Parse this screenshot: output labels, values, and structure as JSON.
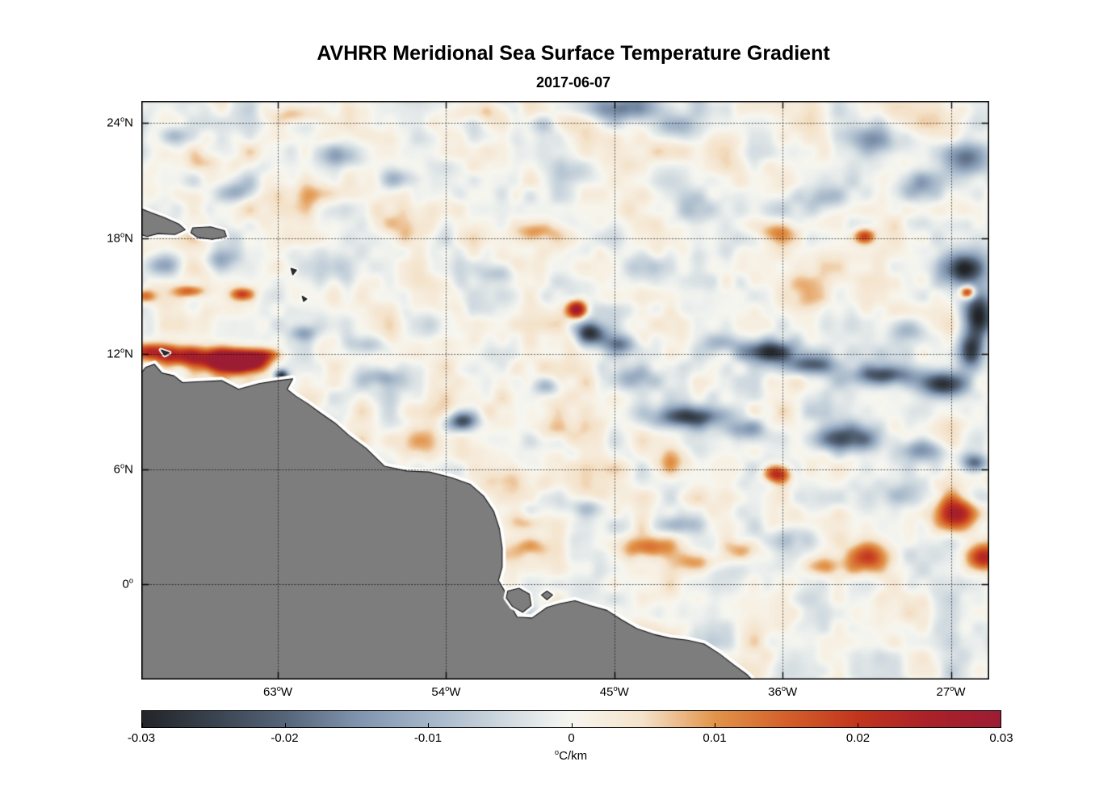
{
  "title": "AVHRR Meridional Sea Surface Temperature Gradient",
  "subtitle": "2017-06-07",
  "chart_data": {
    "type": "heatmap",
    "title": "AVHRR Meridional Sea Surface Temperature Gradient",
    "subtitle": "2017-06-07",
    "extent": {
      "lon_min": -70.3,
      "lon_max": -24.95,
      "lat_min": -4.95,
      "lat_max": 25.15
    },
    "x_ticks": [
      {
        "lon": -63,
        "label": "63^oW"
      },
      {
        "lon": -54,
        "label": "54^oW"
      },
      {
        "lon": -45,
        "label": "45^oW"
      },
      {
        "lon": -36,
        "label": "36^oW"
      },
      {
        "lon": -27,
        "label": "27^oW"
      }
    ],
    "y_ticks": [
      {
        "lat": 24,
        "label": "24^oN"
      },
      {
        "lat": 18,
        "label": "18^oN"
      },
      {
        "lat": 12,
        "label": "12^oN"
      },
      {
        "lat": 6,
        "label": "6^oN"
      },
      {
        "lat": 0,
        "label": "0^o"
      }
    ],
    "grid": {
      "lon": [
        -63,
        -54,
        -45,
        -36,
        -27
      ],
      "lat": [
        0,
        6,
        12,
        18,
        24
      ],
      "style": "dotted"
    },
    "colorbar": {
      "min": -0.03,
      "max": 0.03,
      "label": "^oC/km",
      "ticks": [
        {
          "v": -0.03,
          "label": "-0.03"
        },
        {
          "v": -0.02,
          "label": "-0.02"
        },
        {
          "v": -0.01,
          "label": "-0.01"
        },
        {
          "v": 0,
          "label": "0"
        },
        {
          "v": 0.01,
          "label": "0.01"
        },
        {
          "v": 0.02,
          "label": "0.02"
        },
        {
          "v": 0.03,
          "label": "0.03"
        }
      ],
      "stops": [
        [
          -0.03,
          "#222428"
        ],
        [
          -0.025,
          "#39434f"
        ],
        [
          -0.02,
          "#566579"
        ],
        [
          -0.015,
          "#7e93ad"
        ],
        [
          -0.01,
          "#a3b5c8"
        ],
        [
          -0.005,
          "#ccd7de"
        ],
        [
          -0.001,
          "#eff1ee"
        ],
        [
          0.0,
          "#f6f6f0"
        ],
        [
          0.001,
          "#f7f2e7"
        ],
        [
          0.005,
          "#f4e2ca"
        ],
        [
          0.01,
          "#e2944a"
        ],
        [
          0.015,
          "#d4602a"
        ],
        [
          0.02,
          "#c2351e"
        ],
        [
          0.025,
          "#aa2129"
        ],
        [
          0.03,
          "#9c1d33"
        ]
      ]
    },
    "noise": {
      "seed": 20170607,
      "octave1": {
        "scale": 1.5,
        "amp": 0.0045
      },
      "octave2": {
        "scale": 0.75,
        "amp": 0.0028
      }
    },
    "features": [
      [
        -70.0,
        12.1,
        1.0,
        0.45,
        0.024
      ],
      [
        -68.0,
        11.9,
        1.2,
        0.5,
        0.026
      ],
      [
        -65.8,
        11.65,
        1.3,
        0.55,
        0.042
      ],
      [
        -64.6,
        11.6,
        0.9,
        0.45,
        0.036
      ],
      [
        -63.6,
        11.95,
        0.8,
        0.35,
        0.016
      ],
      [
        -62.8,
        10.85,
        0.35,
        0.3,
        -0.03
      ],
      [
        -70.2,
        15.0,
        0.6,
        0.35,
        0.016
      ],
      [
        -67.7,
        15.25,
        0.8,
        0.3,
        0.015
      ],
      [
        -64.9,
        15.1,
        0.6,
        0.3,
        0.016
      ],
      [
        -69.0,
        16.6,
        0.9,
        0.5,
        -0.011
      ],
      [
        -66.1,
        16.9,
        0.9,
        0.5,
        -0.009
      ],
      [
        -68.6,
        23.3,
        0.8,
        0.5,
        -0.012
      ],
      [
        -65.3,
        20.4,
        1.0,
        0.5,
        -0.011
      ],
      [
        -62.0,
        24.4,
        1.3,
        0.5,
        0.009
      ],
      [
        -59.7,
        22.3,
        1.1,
        0.6,
        -0.012
      ],
      [
        -56.6,
        21.1,
        1.0,
        0.5,
        -0.011
      ],
      [
        -66.8,
        21.9,
        1.0,
        0.5,
        0.008
      ],
      [
        -61.0,
        20.3,
        1.2,
        0.6,
        0.008
      ],
      [
        -52.4,
        24.6,
        1.2,
        0.5,
        0.008
      ],
      [
        -48.7,
        23.9,
        0.9,
        0.5,
        -0.009
      ],
      [
        -44.6,
        24.8,
        1.8,
        0.7,
        -0.02
      ],
      [
        -41.9,
        23.9,
        1.1,
        0.6,
        -0.013
      ],
      [
        -49.2,
        18.3,
        1.2,
        0.5,
        0.009
      ],
      [
        -51.2,
        16.2,
        1.0,
        0.5,
        -0.009
      ],
      [
        -46.9,
        21.6,
        1.0,
        0.6,
        -0.008
      ],
      [
        -30.9,
        23.1,
        1.4,
        0.8,
        -0.014
      ],
      [
        -26.3,
        22.1,
        1.2,
        0.8,
        -0.015
      ],
      [
        -33.6,
        20.1,
        1.2,
        0.6,
        -0.009
      ],
      [
        -31.6,
        18.1,
        0.55,
        0.4,
        0.02
      ],
      [
        -36.4,
        18.3,
        1.1,
        0.5,
        0.008
      ],
      [
        -47.0,
        14.3,
        0.55,
        0.45,
        0.034
      ],
      [
        -46.3,
        13.1,
        0.8,
        0.6,
        -0.026
      ],
      [
        -44.7,
        12.5,
        0.9,
        0.5,
        -0.016
      ],
      [
        -58.2,
        12.4,
        1.1,
        0.5,
        -0.009
      ],
      [
        -61.6,
        13.1,
        0.7,
        0.4,
        -0.01
      ],
      [
        -36.9,
        12.1,
        1.5,
        0.6,
        -0.027
      ],
      [
        -34.4,
        11.4,
        1.2,
        0.5,
        -0.02
      ],
      [
        -39.3,
        12.6,
        1.0,
        0.5,
        -0.011
      ],
      [
        -26.4,
        16.4,
        1.2,
        0.9,
        -0.027
      ],
      [
        -25.5,
        13.9,
        0.8,
        1.1,
        -0.033
      ],
      [
        -25.9,
        12.1,
        0.7,
        0.9,
        -0.029
      ],
      [
        -26.1,
        15.2,
        0.4,
        0.35,
        0.028
      ],
      [
        -30.6,
        10.9,
        1.6,
        0.55,
        -0.025
      ],
      [
        -27.4,
        10.4,
        1.3,
        0.7,
        -0.027
      ],
      [
        -29.3,
        13.2,
        1.0,
        0.6,
        -0.011
      ],
      [
        -53.1,
        8.5,
        0.8,
        0.5,
        -0.025
      ],
      [
        -48.6,
        10.3,
        0.8,
        0.5,
        -0.013
      ],
      [
        -40.9,
        8.7,
        1.8,
        0.55,
        -0.023
      ],
      [
        -37.9,
        8.1,
        1.2,
        0.5,
        -0.015
      ],
      [
        -32.7,
        7.6,
        1.6,
        0.7,
        -0.023
      ],
      [
        -28.6,
        7.0,
        1.1,
        0.6,
        -0.017
      ],
      [
        -36.3,
        5.75,
        0.7,
        0.45,
        0.025
      ],
      [
        -25.7,
        6.3,
        0.7,
        0.5,
        -0.023
      ],
      [
        -55.2,
        7.4,
        2.0,
        0.9,
        0.007
      ],
      [
        -50.5,
        5.3,
        1.6,
        0.7,
        0.007
      ],
      [
        -44.0,
        10.8,
        1.2,
        0.6,
        -0.009
      ],
      [
        -42.0,
        6.3,
        1.2,
        0.6,
        0.007
      ],
      [
        -46.4,
        4.0,
        1.1,
        0.5,
        -0.011
      ],
      [
        -43.2,
        1.9,
        1.4,
        0.55,
        0.013
      ],
      [
        -40.6,
        1.1,
        1.1,
        0.5,
        0.011
      ],
      [
        -41.6,
        3.1,
        1.3,
        0.5,
        -0.012
      ],
      [
        -31.3,
        1.4,
        1.4,
        0.8,
        0.017
      ],
      [
        -26.8,
        3.6,
        1.1,
        0.9,
        0.028
      ],
      [
        -25.3,
        1.4,
        0.8,
        0.7,
        0.026
      ],
      [
        -29.8,
        4.6,
        1.0,
        0.6,
        -0.012
      ],
      [
        -35.4,
        2.4,
        1.2,
        0.6,
        -0.01
      ],
      [
        -33.8,
        0.9,
        1.1,
        0.5,
        0.011
      ],
      [
        -38.2,
        1.8,
        1.0,
        0.5,
        0.009
      ],
      [
        -57.5,
        10.8,
        1.0,
        0.45,
        -0.008
      ],
      [
        -48.0,
        8.0,
        1.2,
        0.6,
        0.007
      ],
      [
        -54.0,
        13.5,
        1.5,
        0.8,
        -0.006
      ],
      [
        -59.0,
        16.5,
        1.5,
        0.8,
        -0.006
      ],
      [
        -43.5,
        16.5,
        1.5,
        0.8,
        -0.007
      ],
      [
        -41.0,
        19.5,
        1.5,
        0.9,
        -0.007
      ],
      [
        -56.0,
        18.5,
        1.5,
        0.8,
        0.006
      ],
      [
        -35.0,
        15.0,
        1.5,
        0.9,
        0.006
      ],
      [
        -29.0,
        20.8,
        1.3,
        0.7,
        -0.01
      ],
      [
        -49.8,
        3.2,
        1.0,
        0.5,
        0.009
      ],
      [
        -49.5,
        2.0,
        1.0,
        0.5,
        0.008
      ]
    ],
    "land": {
      "halo": "#ffffff",
      "outline": "#111111",
      "pieces": [
        {
          "name": "south-america-mainland",
          "halo": 9,
          "fill": "#7d7d7d",
          "pts": [
            [
              -70.35,
              10.95
            ],
            [
              -70.05,
              11.3
            ],
            [
              -69.6,
              11.45
            ],
            [
              -69.2,
              11.0
            ],
            [
              -68.55,
              10.85
            ],
            [
              -68.1,
              10.5
            ],
            [
              -67.1,
              10.55
            ],
            [
              -66.0,
              10.6
            ],
            [
              -65.1,
              10.15
            ],
            [
              -64.0,
              10.45
            ],
            [
              -63.0,
              10.6
            ],
            [
              -62.2,
              10.7
            ],
            [
              -62.5,
              10.15
            ],
            [
              -62.05,
              9.8
            ],
            [
              -61.4,
              9.4
            ],
            [
              -60.7,
              8.9
            ],
            [
              -59.95,
              8.4
            ],
            [
              -59.2,
              7.75
            ],
            [
              -58.3,
              7.1
            ],
            [
              -57.3,
              6.15
            ],
            [
              -56.1,
              5.9
            ],
            [
              -54.9,
              5.85
            ],
            [
              -53.7,
              5.55
            ],
            [
              -52.7,
              5.2
            ],
            [
              -52.0,
              4.6
            ],
            [
              -51.45,
              3.8
            ],
            [
              -51.15,
              2.9
            ],
            [
              -51.0,
              1.9
            ],
            [
              -51.0,
              0.9
            ],
            [
              -51.2,
              0.2
            ],
            [
              -50.9,
              -0.3
            ],
            [
              -50.6,
              -1.0
            ],
            [
              -50.2,
              -1.7
            ],
            [
              -49.4,
              -1.75
            ],
            [
              -48.6,
              -1.2
            ],
            [
              -47.9,
              -1.0
            ],
            [
              -47.1,
              -0.85
            ],
            [
              -46.3,
              -1.1
            ],
            [
              -45.4,
              -1.35
            ],
            [
              -44.6,
              -1.85
            ],
            [
              -43.8,
              -2.3
            ],
            [
              -42.9,
              -2.6
            ],
            [
              -42.0,
              -2.8
            ],
            [
              -41.1,
              -2.9
            ],
            [
              -40.2,
              -3.1
            ],
            [
              -39.4,
              -3.6
            ],
            [
              -38.6,
              -4.2
            ],
            [
              -37.9,
              -4.7
            ],
            [
              -37.45,
              -5.15
            ],
            [
              -37.3,
              -5.8
            ],
            [
              -71.0,
              -5.8
            ],
            [
              -71.0,
              10.4
            ]
          ]
        },
        {
          "name": "marajo-island",
          "halo": 7,
          "fill": "#7d7d7d",
          "pts": [
            [
              -50.7,
              -0.35
            ],
            [
              -50.1,
              -0.2
            ],
            [
              -49.55,
              -0.5
            ],
            [
              -49.45,
              -1.1
            ],
            [
              -49.9,
              -1.45
            ],
            [
              -50.45,
              -1.15
            ],
            [
              -50.78,
              -0.7
            ]
          ]
        },
        {
          "name": "para-islets",
          "halo": 6,
          "fill": "#7d7d7d",
          "pts": [
            [
              -48.9,
              -0.55
            ],
            [
              -48.6,
              -0.35
            ],
            [
              -48.3,
              -0.55
            ],
            [
              -48.6,
              -0.8
            ]
          ]
        },
        {
          "name": "hispaniola",
          "halo": 8,
          "fill": "#7d7d7d",
          "pts": [
            [
              -70.45,
              19.6
            ],
            [
              -69.8,
              19.35
            ],
            [
              -69.1,
              19.1
            ],
            [
              -68.3,
              18.75
            ],
            [
              -67.95,
              18.45
            ],
            [
              -68.5,
              18.2
            ],
            [
              -69.4,
              18.25
            ],
            [
              -70.0,
              18.1
            ],
            [
              -70.45,
              18.25
            ]
          ]
        },
        {
          "name": "puerto-rico",
          "halo": 7,
          "fill": "#7d7d7d",
          "pts": [
            [
              -67.55,
              18.55
            ],
            [
              -66.6,
              18.6
            ],
            [
              -65.85,
              18.4
            ],
            [
              -65.75,
              18.1
            ],
            [
              -66.5,
              17.95
            ],
            [
              -67.3,
              18.05
            ],
            [
              -67.65,
              18.3
            ]
          ]
        },
        {
          "name": "curacao",
          "halo": 5,
          "fill": "#2f2f2f",
          "pts": [
            [
              -69.25,
              12.2
            ],
            [
              -68.8,
              12.05
            ],
            [
              -69.05,
              11.92
            ]
          ]
        },
        {
          "name": "guadeloupe",
          "halo": 5,
          "fill": "#2f2f2f",
          "pts": [
            [
              -62.3,
              16.45
            ],
            [
              -62.0,
              16.35
            ],
            [
              -62.2,
              16.1
            ]
          ]
        },
        {
          "name": "dominica",
          "halo": 5,
          "fill": "#2f2f2f",
          "pts": [
            [
              -61.7,
              15.0
            ],
            [
              -61.45,
              14.85
            ],
            [
              -61.62,
              14.72
            ]
          ]
        }
      ]
    }
  }
}
